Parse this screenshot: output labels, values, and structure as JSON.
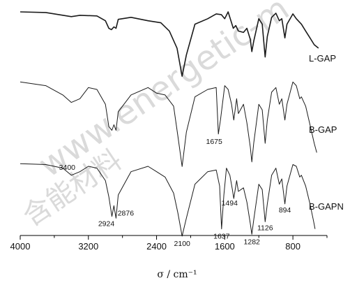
{
  "watermark": {
    "text": "www.energetic-m",
    "cjk": "含能材料"
  },
  "chart_data": {
    "type": "line",
    "xlabel": "σ / cm⁻¹",
    "xlim": [
      4000,
      400
    ],
    "x_ticks": [
      4000,
      3200,
      2400,
      1600,
      800
    ],
    "grid": false,
    "series": [
      {
        "name": "L-GAP",
        "points": [
          [
            4000,
            98
          ],
          [
            3700,
            97
          ],
          [
            3400,
            91
          ],
          [
            3300,
            93
          ],
          [
            3100,
            92
          ],
          [
            3000,
            85
          ],
          [
            2960,
            74
          ],
          [
            2930,
            72
          ],
          [
            2900,
            76
          ],
          [
            2876,
            74
          ],
          [
            2850,
            87
          ],
          [
            2700,
            90
          ],
          [
            2500,
            85
          ],
          [
            2350,
            82
          ],
          [
            2250,
            70
          ],
          [
            2160,
            45
          ],
          [
            2100,
            4
          ],
          [
            2050,
            35
          ],
          [
            1950,
            80
          ],
          [
            1800,
            88
          ],
          [
            1700,
            95
          ],
          [
            1640,
            94
          ],
          [
            1600,
            88
          ],
          [
            1560,
            98
          ],
          [
            1500,
            74
          ],
          [
            1470,
            78
          ],
          [
            1440,
            70
          ],
          [
            1380,
            68
          ],
          [
            1340,
            74
          ],
          [
            1300,
            58
          ],
          [
            1282,
            40
          ],
          [
            1260,
            55
          ],
          [
            1200,
            88
          ],
          [
            1160,
            80
          ],
          [
            1126,
            32
          ],
          [
            1100,
            62
          ],
          [
            1050,
            90
          ],
          [
            1000,
            96
          ],
          [
            960,
            85
          ],
          [
            930,
            88
          ],
          [
            894,
            60
          ],
          [
            870,
            80
          ],
          [
            800,
            95
          ],
          [
            760,
            88
          ],
          [
            700,
            80
          ],
          [
            650,
            70
          ],
          [
            600,
            60
          ],
          [
            550,
            50
          ],
          [
            500,
            45
          ]
        ]
      },
      {
        "name": "B-GAP",
        "points": [
          [
            4000,
            96
          ],
          [
            3700,
            92
          ],
          [
            3500,
            82
          ],
          [
            3400,
            74
          ],
          [
            3300,
            78
          ],
          [
            3200,
            90
          ],
          [
            3100,
            88
          ],
          [
            3000,
            72
          ],
          [
            2960,
            48
          ],
          [
            2924,
            44
          ],
          [
            2900,
            50
          ],
          [
            2876,
            44
          ],
          [
            2850,
            64
          ],
          [
            2700,
            82
          ],
          [
            2500,
            90
          ],
          [
            2400,
            84
          ],
          [
            2300,
            82
          ],
          [
            2200,
            70
          ],
          [
            2150,
            38
          ],
          [
            2100,
            5
          ],
          [
            2050,
            42
          ],
          [
            1950,
            80
          ],
          [
            1800,
            88
          ],
          [
            1700,
            90
          ],
          [
            1675,
            40
          ],
          [
            1650,
            55
          ],
          [
            1600,
            92
          ],
          [
            1560,
            88
          ],
          [
            1520,
            72
          ],
          [
            1494,
            55
          ],
          [
            1460,
            78
          ],
          [
            1440,
            62
          ],
          [
            1380,
            72
          ],
          [
            1340,
            52
          ],
          [
            1300,
            26
          ],
          [
            1282,
            10
          ],
          [
            1260,
            30
          ],
          [
            1200,
            72
          ],
          [
            1160,
            66
          ],
          [
            1126,
            30
          ],
          [
            1100,
            55
          ],
          [
            1050,
            85
          ],
          [
            1000,
            90
          ],
          [
            960,
            72
          ],
          [
            930,
            78
          ],
          [
            894,
            55
          ],
          [
            870,
            72
          ],
          [
            800,
            96
          ],
          [
            760,
            92
          ],
          [
            720,
            78
          ],
          [
            700,
            80
          ],
          [
            650,
            70
          ],
          [
            600,
            50
          ],
          [
            550,
            30
          ],
          [
            520,
            20
          ]
        ]
      },
      {
        "name": "B-GAPN",
        "points": [
          [
            4000,
            85
          ],
          [
            3700,
            84
          ],
          [
            3500,
            80
          ],
          [
            3400,
            72
          ],
          [
            3300,
            76
          ],
          [
            3200,
            82
          ],
          [
            3100,
            80
          ],
          [
            3000,
            66
          ],
          [
            2960,
            48
          ],
          [
            2924,
            26
          ],
          [
            2900,
            38
          ],
          [
            2876,
            24
          ],
          [
            2850,
            50
          ],
          [
            2700,
            76
          ],
          [
            2500,
            82
          ],
          [
            2400,
            76
          ],
          [
            2300,
            70
          ],
          [
            2200,
            52
          ],
          [
            2150,
            30
          ],
          [
            2100,
            4
          ],
          [
            2050,
            24
          ],
          [
            1950,
            62
          ],
          [
            1800,
            76
          ],
          [
            1700,
            78
          ],
          [
            1660,
            60
          ],
          [
            1637,
            12
          ],
          [
            1610,
            50
          ],
          [
            1580,
            80
          ],
          [
            1540,
            72
          ],
          [
            1510,
            56
          ],
          [
            1494,
            46
          ],
          [
            1460,
            66
          ],
          [
            1440,
            54
          ],
          [
            1380,
            58
          ],
          [
            1340,
            42
          ],
          [
            1300,
            18
          ],
          [
            1282,
            6
          ],
          [
            1260,
            22
          ],
          [
            1200,
            62
          ],
          [
            1160,
            56
          ],
          [
            1126,
            20
          ],
          [
            1100,
            40
          ],
          [
            1050,
            72
          ],
          [
            1000,
            80
          ],
          [
            960,
            62
          ],
          [
            930,
            68
          ],
          [
            894,
            40
          ],
          [
            870,
            60
          ],
          [
            800,
            84
          ],
          [
            760,
            82
          ],
          [
            720,
            70
          ],
          [
            700,
            72
          ],
          [
            650,
            60
          ],
          [
            600,
            40
          ],
          [
            560,
            22
          ],
          [
            540,
            12
          ]
        ]
      }
    ],
    "annotations": [
      {
        "label": "1675",
        "series": "B-GAP",
        "x": 1675
      },
      {
        "label": "3400",
        "series": "B-GAPN",
        "x": 3400
      },
      {
        "label": "2924",
        "series": "B-GAPN",
        "x": 2924
      },
      {
        "label": "2876",
        "series": "B-GAPN",
        "x": 2876
      },
      {
        "label": "2100",
        "series": "B-GAPN",
        "x": 2100
      },
      {
        "label": "1637",
        "series": "B-GAPN",
        "x": 1637
      },
      {
        "label": "1494",
        "series": "B-GAPN",
        "x": 1494
      },
      {
        "label": "1282",
        "series": "B-GAPN",
        "x": 1282
      },
      {
        "label": "1126",
        "series": "B-GAPN",
        "x": 1126
      },
      {
        "label": "894",
        "series": "B-GAPN",
        "x": 894
      }
    ],
    "colors": {
      "line": "#1a1a1a",
      "axis": "#000000",
      "watermark": "#bdbdbd"
    }
  }
}
